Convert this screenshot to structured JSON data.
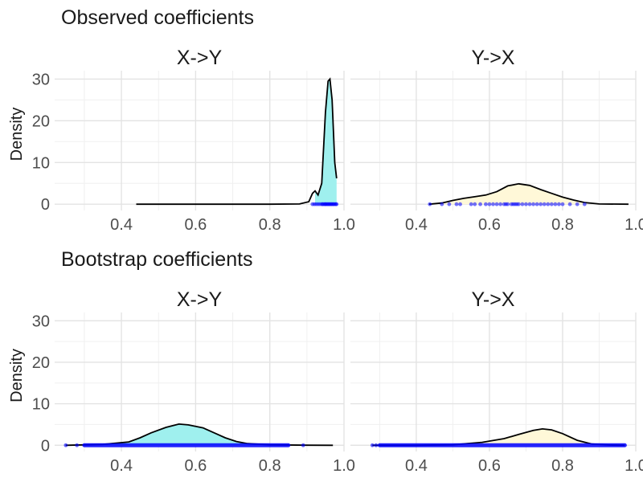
{
  "sections": [
    {
      "title": "Observed coefficients",
      "ylabel": "Density",
      "panels": [
        {
          "title": "X->Y",
          "fill": "#9ff0ee",
          "density": [
            [
              0.44,
              0
            ],
            [
              0.8,
              0
            ],
            [
              0.88,
              0.05
            ],
            [
              0.905,
              0.6
            ],
            [
              0.915,
              2.6
            ],
            [
              0.922,
              3.2
            ],
            [
              0.93,
              2.2
            ],
            [
              0.94,
              5
            ],
            [
              0.95,
              22
            ],
            [
              0.957,
              29.5
            ],
            [
              0.962,
              30
            ],
            [
              0.968,
              25
            ],
            [
              0.975,
              10
            ],
            [
              0.98,
              6.2
            ]
          ],
          "fill_range": [
            0.92,
            0.98
          ],
          "rug": [
            0.915,
            0.92,
            0.925,
            0.93,
            0.935,
            0.94,
            0.942,
            0.945,
            0.948,
            0.95,
            0.952,
            0.955,
            0.957,
            0.96,
            0.962,
            0.965,
            0.967,
            0.97,
            0.972,
            0.975,
            0.978,
            0.98
          ]
        },
        {
          "title": "Y->X",
          "fill": "#fff8d8",
          "density": [
            [
              0.435,
              0
            ],
            [
              0.47,
              0.3
            ],
            [
              0.5,
              0.9
            ],
            [
              0.53,
              1.4
            ],
            [
              0.56,
              1.8
            ],
            [
              0.59,
              2.2
            ],
            [
              0.62,
              3.0
            ],
            [
              0.65,
              4.4
            ],
            [
              0.68,
              4.9
            ],
            [
              0.71,
              4.5
            ],
            [
              0.74,
              3.5
            ],
            [
              0.77,
              2.6
            ],
            [
              0.8,
              1.7
            ],
            [
              0.83,
              1.0
            ],
            [
              0.86,
              0.4
            ],
            [
              0.9,
              0.05
            ],
            [
              0.98,
              0
            ]
          ],
          "fill_range": [
            0.435,
            0.86
          ],
          "rug": [
            0.437,
            0.47,
            0.49,
            0.51,
            0.52,
            0.55,
            0.56,
            0.575,
            0.59,
            0.6,
            0.61,
            0.62,
            0.63,
            0.64,
            0.645,
            0.65,
            0.66,
            0.665,
            0.67,
            0.675,
            0.68,
            0.69,
            0.7,
            0.71,
            0.72,
            0.73,
            0.74,
            0.75,
            0.76,
            0.77,
            0.78,
            0.79,
            0.8,
            0.82,
            0.84,
            0.86
          ]
        }
      ]
    },
    {
      "title": "Bootstrap coefficients",
      "ylabel": "Density",
      "panels": [
        {
          "title": "X->Y",
          "fill": "#9ff0ee",
          "density": [
            [
              0.25,
              0
            ],
            [
              0.35,
              0.2
            ],
            [
              0.42,
              0.8
            ],
            [
              0.45,
              1.8
            ],
            [
              0.48,
              3.0
            ],
            [
              0.52,
              4.3
            ],
            [
              0.555,
              5.1
            ],
            [
              0.58,
              4.9
            ],
            [
              0.62,
              4.2
            ],
            [
              0.65,
              3.0
            ],
            [
              0.68,
              1.8
            ],
            [
              0.71,
              0.9
            ],
            [
              0.74,
              0.4
            ],
            [
              0.8,
              0.1
            ],
            [
              0.9,
              0.02
            ],
            [
              0.97,
              0
            ]
          ],
          "fill_range": [
            0.28,
            0.89
          ],
          "rug_range": [
            0.3,
            0.85
          ],
          "rug_outliers": [
            0.25,
            0.28,
            0.89
          ]
        },
        {
          "title": "Y->X",
          "fill": "#fff8d8",
          "density": [
            [
              0.28,
              0
            ],
            [
              0.4,
              0
            ],
            [
              0.5,
              0.1
            ],
            [
              0.58,
              0.7
            ],
            [
              0.64,
              1.6
            ],
            [
              0.68,
              2.6
            ],
            [
              0.72,
              3.6
            ],
            [
              0.745,
              3.95
            ],
            [
              0.77,
              3.7
            ],
            [
              0.8,
              2.8
            ],
            [
              0.84,
              1.2
            ],
            [
              0.88,
              0.3
            ],
            [
              0.93,
              0.05
            ],
            [
              0.97,
              0
            ]
          ],
          "fill_range": [
            0.3,
            0.97
          ],
          "rug_range": [
            0.3,
            0.97
          ],
          "rug_outliers": [
            0.28,
            0.29
          ]
        }
      ]
    }
  ],
  "chart_data": {
    "type": "area",
    "x_ticks": [
      "0.4",
      "0.6",
      "0.8",
      "1.0"
    ],
    "y_ticks": [
      "0",
      "10",
      "20",
      "30"
    ],
    "xlim": [
      0.22,
      1.0
    ],
    "ylim": [
      -1.5,
      32
    ],
    "grid": true,
    "rug_color": "#0000ff",
    "line_color": "#000000"
  }
}
